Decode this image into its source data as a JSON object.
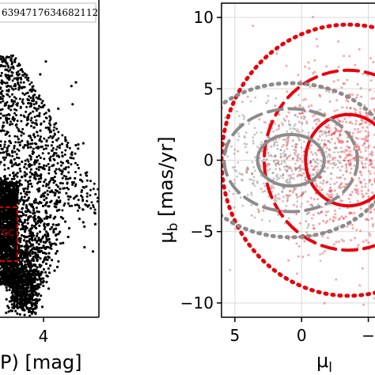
{
  "chart_data": [
    {
      "type": "scatter",
      "title": "",
      "xlabel": "P) [mag]",
      "ylabel": "",
      "x_ticks": [
        "4"
      ],
      "legend": {
        "label": "639471763468211 2",
        "text": "6394717634682112",
        "placement": "top"
      },
      "annotation": "GC",
      "colors": {
        "points": "#000000",
        "box": "#d40000"
      },
      "series": [
        {
          "values_note": "dense black point cloud",
          "color": "#000000"
        }
      ]
    },
    {
      "type": "scatter",
      "title": "",
      "xlabel": "μ_l",
      "xlabel_main": "μ",
      "xlabel_sub": "l",
      "ylabel_main": "μ",
      "ylabel_sub": "b",
      "ylabel_unit": "[mas/yr]",
      "x_ticks": [
        "5",
        "0",
        "−"
      ],
      "y_ticks": [
        "10",
        "5",
        "0",
        "−5",
        "−10"
      ],
      "x_inverted": true,
      "xlim": [
        6,
        -5.5
      ],
      "ylim": [
        -11,
        11
      ],
      "grid": true,
      "colors": {
        "red": "#e8000b",
        "grey": "#8c8c8c"
      },
      "ellipses": [
        {
          "name": "",
          "color": "red",
          "style": "dotted",
          "cx": -3.5,
          "cy": 0,
          "rx": 9.5,
          "ry": 9.5
        },
        {
          "name": "",
          "color": "red",
          "style": "dashed",
          "cx": -3.5,
          "cy": 0,
          "rx": 6.3,
          "ry": 6.3
        },
        {
          "name": "",
          "color": "red",
          "style": "solid",
          "cx": -3.5,
          "cy": 0,
          "rx": 3.2,
          "ry": 3.2
        },
        {
          "name": "",
          "color": "grey",
          "style": "dotted",
          "cx": 0.8,
          "cy": 0,
          "rx": 7.5,
          "ry": 5.4
        },
        {
          "name": "",
          "color": "grey",
          "style": "dashed",
          "cx": 0.8,
          "cy": 0,
          "rx": 5.0,
          "ry": 3.6
        },
        {
          "name": "",
          "color": "grey",
          "style": "solid",
          "cx": 0.8,
          "cy": 0,
          "rx": 2.5,
          "ry": 1.8
        }
      ]
    }
  ]
}
